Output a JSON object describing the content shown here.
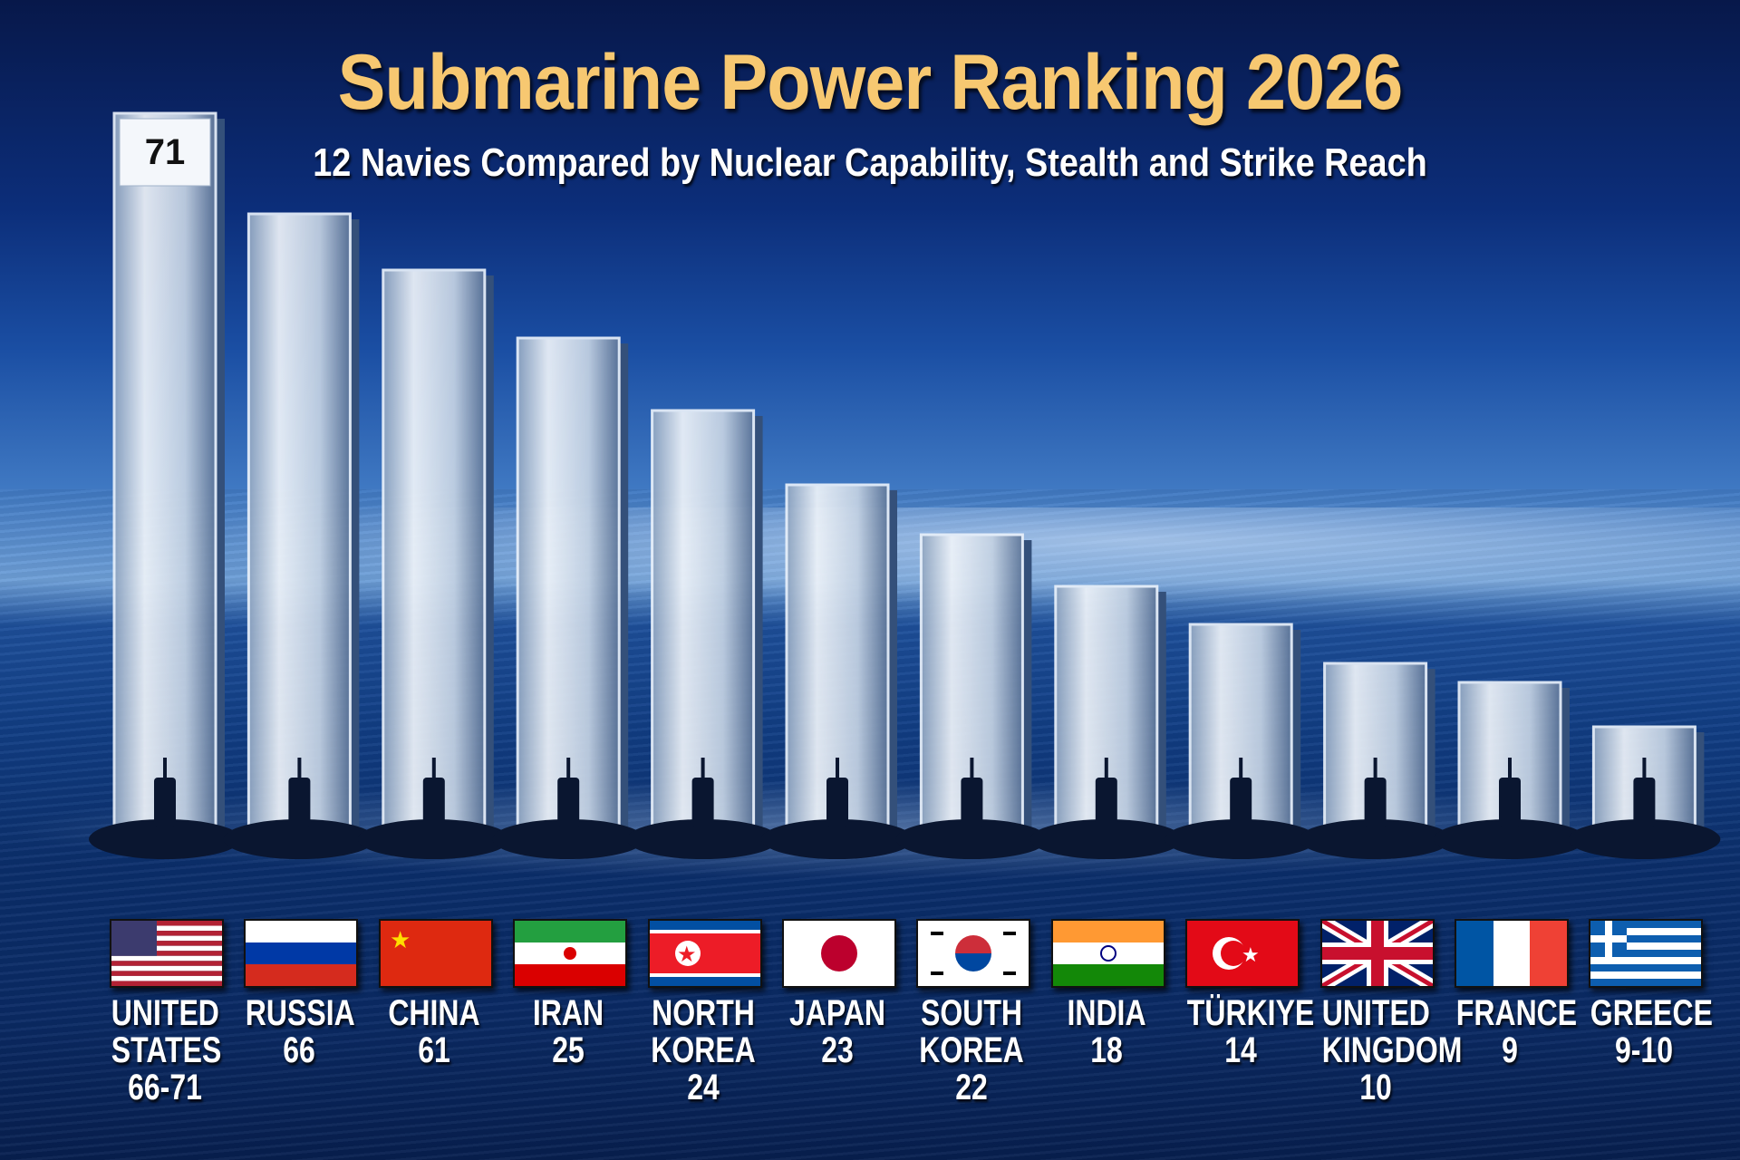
{
  "chart_data": {
    "type": "bar",
    "title": "Submarine Power Ranking 2026",
    "subtitle": "12 Navies Compared by Nuclear Capability, Stealth and Strike Reach",
    "categories": [
      "UNITED STATES",
      "RUSSIA",
      "CHINA",
      "IRAN",
      "NORTH KOREA",
      "JAPAN",
      "SOUTH KOREA",
      "INDIA",
      "TÜRKIYE",
      "UNITED KINGDOM",
      "FRANCE",
      "GREECE"
    ],
    "label_lines": [
      [
        "UNITED",
        "STATES",
        "66-71"
      ],
      [
        "RUSSIA",
        "66"
      ],
      [
        "CHINA",
        "61"
      ],
      [
        "IRAN",
        "25"
      ],
      [
        "NORTH",
        "KOREA",
        "24"
      ],
      [
        "JAPAN",
        "23"
      ],
      [
        "SOUTH",
        "KOREA",
        "22"
      ],
      [
        "INDIA",
        "18"
      ],
      [
        "TÜRKIYE",
        "14"
      ],
      [
        "UNITED",
        "KINGDOM",
        "10"
      ],
      [
        "FRANCE",
        "9"
      ],
      [
        "GREECE",
        "9-10"
      ]
    ],
    "values": [
      71,
      66,
      61,
      25,
      24,
      23,
      22,
      18,
      14,
      10,
      9,
      10
    ],
    "ranges": {
      "UNITED STATES": [
        66,
        71
      ],
      "GREECE": [
        9,
        10
      ]
    },
    "top_bar_label": "71",
    "flags": [
      "us",
      "ru",
      "cn",
      "ir",
      "kp",
      "jp",
      "kr",
      "in",
      "tr",
      "gb",
      "fr",
      "gr"
    ],
    "xlabel": "",
    "ylabel": "",
    "grid": false,
    "legend": "none",
    "colors": {
      "title": "#f7c871",
      "bar": "#c9d6e6",
      "background": "#0c2e7a"
    }
  }
}
